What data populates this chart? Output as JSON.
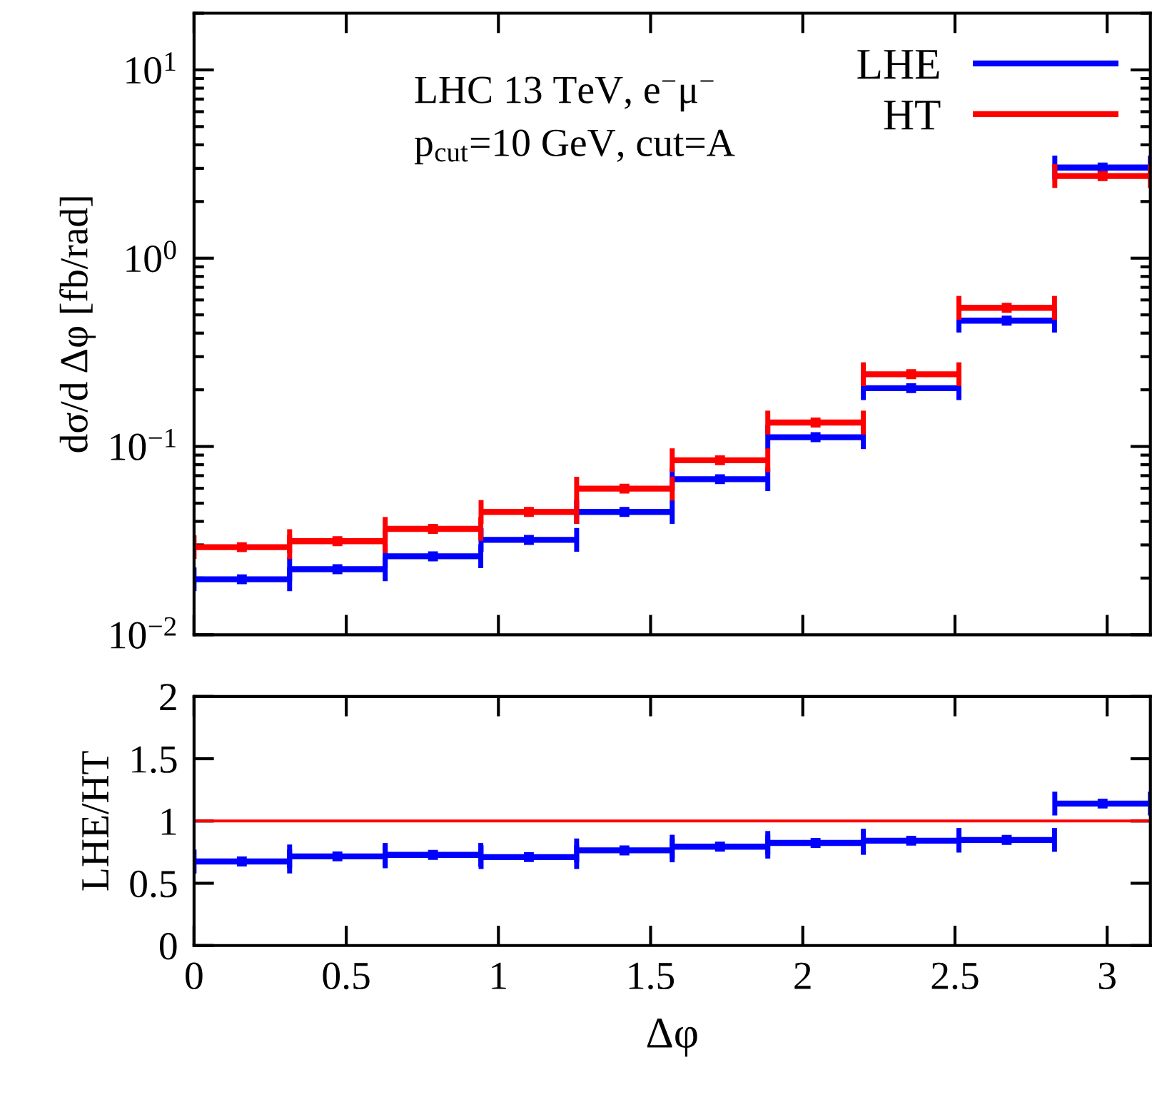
{
  "chart_data": [
    {
      "type": "scatter",
      "x": [
        0.157,
        0.471,
        0.785,
        1.1,
        1.414,
        1.728,
        2.042,
        2.356,
        2.67,
        2.985
      ],
      "series": [
        {
          "name": "LHE",
          "color": "#0000ff",
          "values": [
            0.0197,
            0.0223,
            0.0261,
            0.0319,
            0.0449,
            0.067,
            0.112,
            0.204,
            0.466,
            3.03
          ],
          "xerrors": [
            0.157,
            0.157,
            0.157,
            0.157,
            0.157,
            0.157,
            0.157,
            0.157,
            0.157,
            0.157
          ]
        },
        {
          "name": "HT",
          "color": "#ff0000",
          "values": [
            0.0292,
            0.0314,
            0.0365,
            0.0449,
            0.0597,
            0.0845,
            0.134,
            0.242,
            0.545,
            2.73
          ],
          "xerrors": [
            0.157,
            0.157,
            0.157,
            0.157,
            0.157,
            0.157,
            0.157,
            0.157,
            0.157,
            0.157
          ]
        }
      ],
      "marker": "square",
      "log": "y",
      "xlim": [
        0,
        3.142
      ],
      "ylim": [
        0.01,
        20
      ],
      "grid": false,
      "xticks": [
        0,
        0.5,
        1,
        1.5,
        2,
        2.5,
        3
      ],
      "yticks": [
        {
          "value": 0.01,
          "label": "10$^{−2}$"
        },
        {
          "value": 0.1,
          "label": "10$^{−1}$"
        },
        {
          "value": 1,
          "label": "10$^{0}$"
        },
        {
          "value": 10,
          "label": "10$^{1}$"
        }
      ],
      "ylabel": "dσ/d Δφ [fb/rad]",
      "tick_labels": "y",
      "legend": "top right",
      "annotations": [
        "LHC 13 TeV, e$^{−}$μ$^{−}$",
        "p$_{cut}$=10 GeV, cut=A"
      ]
    },
    {
      "type": "scatter",
      "x": [
        0.157,
        0.471,
        0.785,
        1.1,
        1.414,
        1.728,
        2.042,
        2.356,
        2.67,
        2.985
      ],
      "series": [
        {
          "color": "#0000ff",
          "values": [
            0.675,
            0.716,
            0.728,
            0.71,
            0.764,
            0.794,
            0.824,
            0.842,
            0.848,
            1.14
          ],
          "xerrors": [
            0.157,
            0.157,
            0.157,
            0.157,
            0.157,
            0.157,
            0.157,
            0.157,
            0.157,
            0.157
          ]
        }
      ],
      "marker": "square",
      "xlim": [
        0,
        3.142
      ],
      "ylim": [
        0,
        2
      ],
      "grid": false,
      "xticks": [
        0,
        0.5,
        1,
        1.5,
        2,
        2.5,
        3
      ],
      "yticks": [
        0,
        0.5,
        1,
        1.5,
        2
      ],
      "xlabel": "Δφ",
      "ylabel": "LHE/HT",
      "ref_lines": [
        {
          "axis": "y",
          "value": 1,
          "color": "#ff0000"
        }
      ]
    }
  ]
}
